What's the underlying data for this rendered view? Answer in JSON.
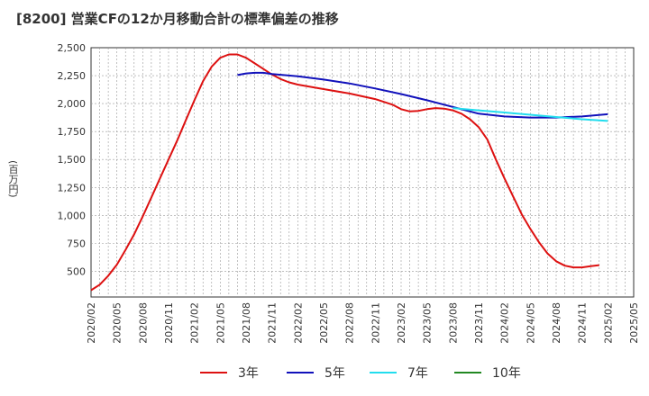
{
  "chart_data": {
    "type": "line",
    "title": "[8200]  営業CFの12か月移動合計の標準偏差の推移",
    "ylabel": "(百万円)",
    "xlabel": "",
    "ylim": [
      270,
      2500
    ],
    "yticks": [
      500,
      750,
      1000,
      1250,
      1500,
      1750,
      2000,
      2250,
      2500
    ],
    "ytick_labels": [
      "500",
      "750",
      "1,000",
      "1,250",
      "1,500",
      "1,750",
      "2,000",
      "2,250",
      "2,500"
    ],
    "x_ticks": [
      "2020/02",
      "2020/05",
      "2020/08",
      "2020/11",
      "2021/02",
      "2021/05",
      "2021/08",
      "2021/11",
      "2022/02",
      "2022/05",
      "2022/08",
      "2022/11",
      "2023/02",
      "2023/05",
      "2023/08",
      "2023/11",
      "2024/02",
      "2024/05",
      "2024/08",
      "2024/11",
      "2025/02",
      "2025/05"
    ],
    "grid": true,
    "legend_position": "bottom",
    "series": [
      {
        "name": "3年",
        "color": "#dd1111",
        "points": [
          [
            "2020/02",
            330
          ],
          [
            "2020/03",
            380
          ],
          [
            "2020/04",
            460
          ],
          [
            "2020/05",
            560
          ],
          [
            "2020/06",
            690
          ],
          [
            "2020/07",
            830
          ],
          [
            "2020/08",
            990
          ],
          [
            "2020/09",
            1160
          ],
          [
            "2020/10",
            1330
          ],
          [
            "2020/11",
            1500
          ],
          [
            "2020/12",
            1670
          ],
          [
            "2021/01",
            1850
          ],
          [
            "2021/02",
            2030
          ],
          [
            "2021/03",
            2200
          ],
          [
            "2021/04",
            2330
          ],
          [
            "2021/05",
            2410
          ],
          [
            "2021/06",
            2440
          ],
          [
            "2021/07",
            2440
          ],
          [
            "2021/08",
            2410
          ],
          [
            "2021/09",
            2360
          ],
          [
            "2021/10",
            2310
          ],
          [
            "2021/11",
            2260
          ],
          [
            "2021/12",
            2220
          ],
          [
            "2022/01",
            2190
          ],
          [
            "2022/02",
            2170
          ],
          [
            "2022/05",
            2130
          ],
          [
            "2022/08",
            2090
          ],
          [
            "2022/11",
            2040
          ],
          [
            "2023/01",
            1990
          ],
          [
            "2023/02",
            1950
          ],
          [
            "2023/03",
            1930
          ],
          [
            "2023/04",
            1935
          ],
          [
            "2023/05",
            1950
          ],
          [
            "2023/06",
            1960
          ],
          [
            "2023/07",
            1955
          ],
          [
            "2023/08",
            1940
          ],
          [
            "2023/09",
            1910
          ],
          [
            "2023/10",
            1860
          ],
          [
            "2023/11",
            1790
          ],
          [
            "2023/12",
            1680
          ],
          [
            "2024/01",
            1500
          ],
          [
            "2024/02",
            1330
          ],
          [
            "2024/03",
            1170
          ],
          [
            "2024/04",
            1010
          ],
          [
            "2024/05",
            880
          ],
          [
            "2024/06",
            760
          ],
          [
            "2024/07",
            660
          ],
          [
            "2024/08",
            590
          ],
          [
            "2024/09",
            550
          ],
          [
            "2024/10",
            535
          ],
          [
            "2024/11",
            535
          ],
          [
            "2024/12",
            545
          ],
          [
            "2025/01",
            555
          ]
        ]
      },
      {
        "name": "5年",
        "color": "#1111bb",
        "points": [
          [
            "2021/07",
            2255
          ],
          [
            "2021/08",
            2270
          ],
          [
            "2021/09",
            2275
          ],
          [
            "2021/10",
            2275
          ],
          [
            "2021/11",
            2265
          ],
          [
            "2022/02",
            2245
          ],
          [
            "2022/05",
            2215
          ],
          [
            "2022/08",
            2180
          ],
          [
            "2022/11",
            2135
          ],
          [
            "2023/02",
            2085
          ],
          [
            "2023/05",
            2030
          ],
          [
            "2023/08",
            1970
          ],
          [
            "2023/11",
            1910
          ],
          [
            "2024/02",
            1885
          ],
          [
            "2024/05",
            1875
          ],
          [
            "2024/08",
            1875
          ],
          [
            "2024/11",
            1885
          ],
          [
            "2025/02",
            1905
          ]
        ]
      },
      {
        "name": "7年",
        "color": "#22ddee",
        "points": [
          [
            "2023/08",
            1960
          ],
          [
            "2023/11",
            1940
          ],
          [
            "2024/02",
            1920
          ],
          [
            "2024/05",
            1900
          ],
          [
            "2024/08",
            1880
          ],
          [
            "2024/11",
            1860
          ],
          [
            "2025/02",
            1845
          ]
        ]
      },
      {
        "name": "10年",
        "color": "#228822",
        "points": []
      }
    ]
  }
}
